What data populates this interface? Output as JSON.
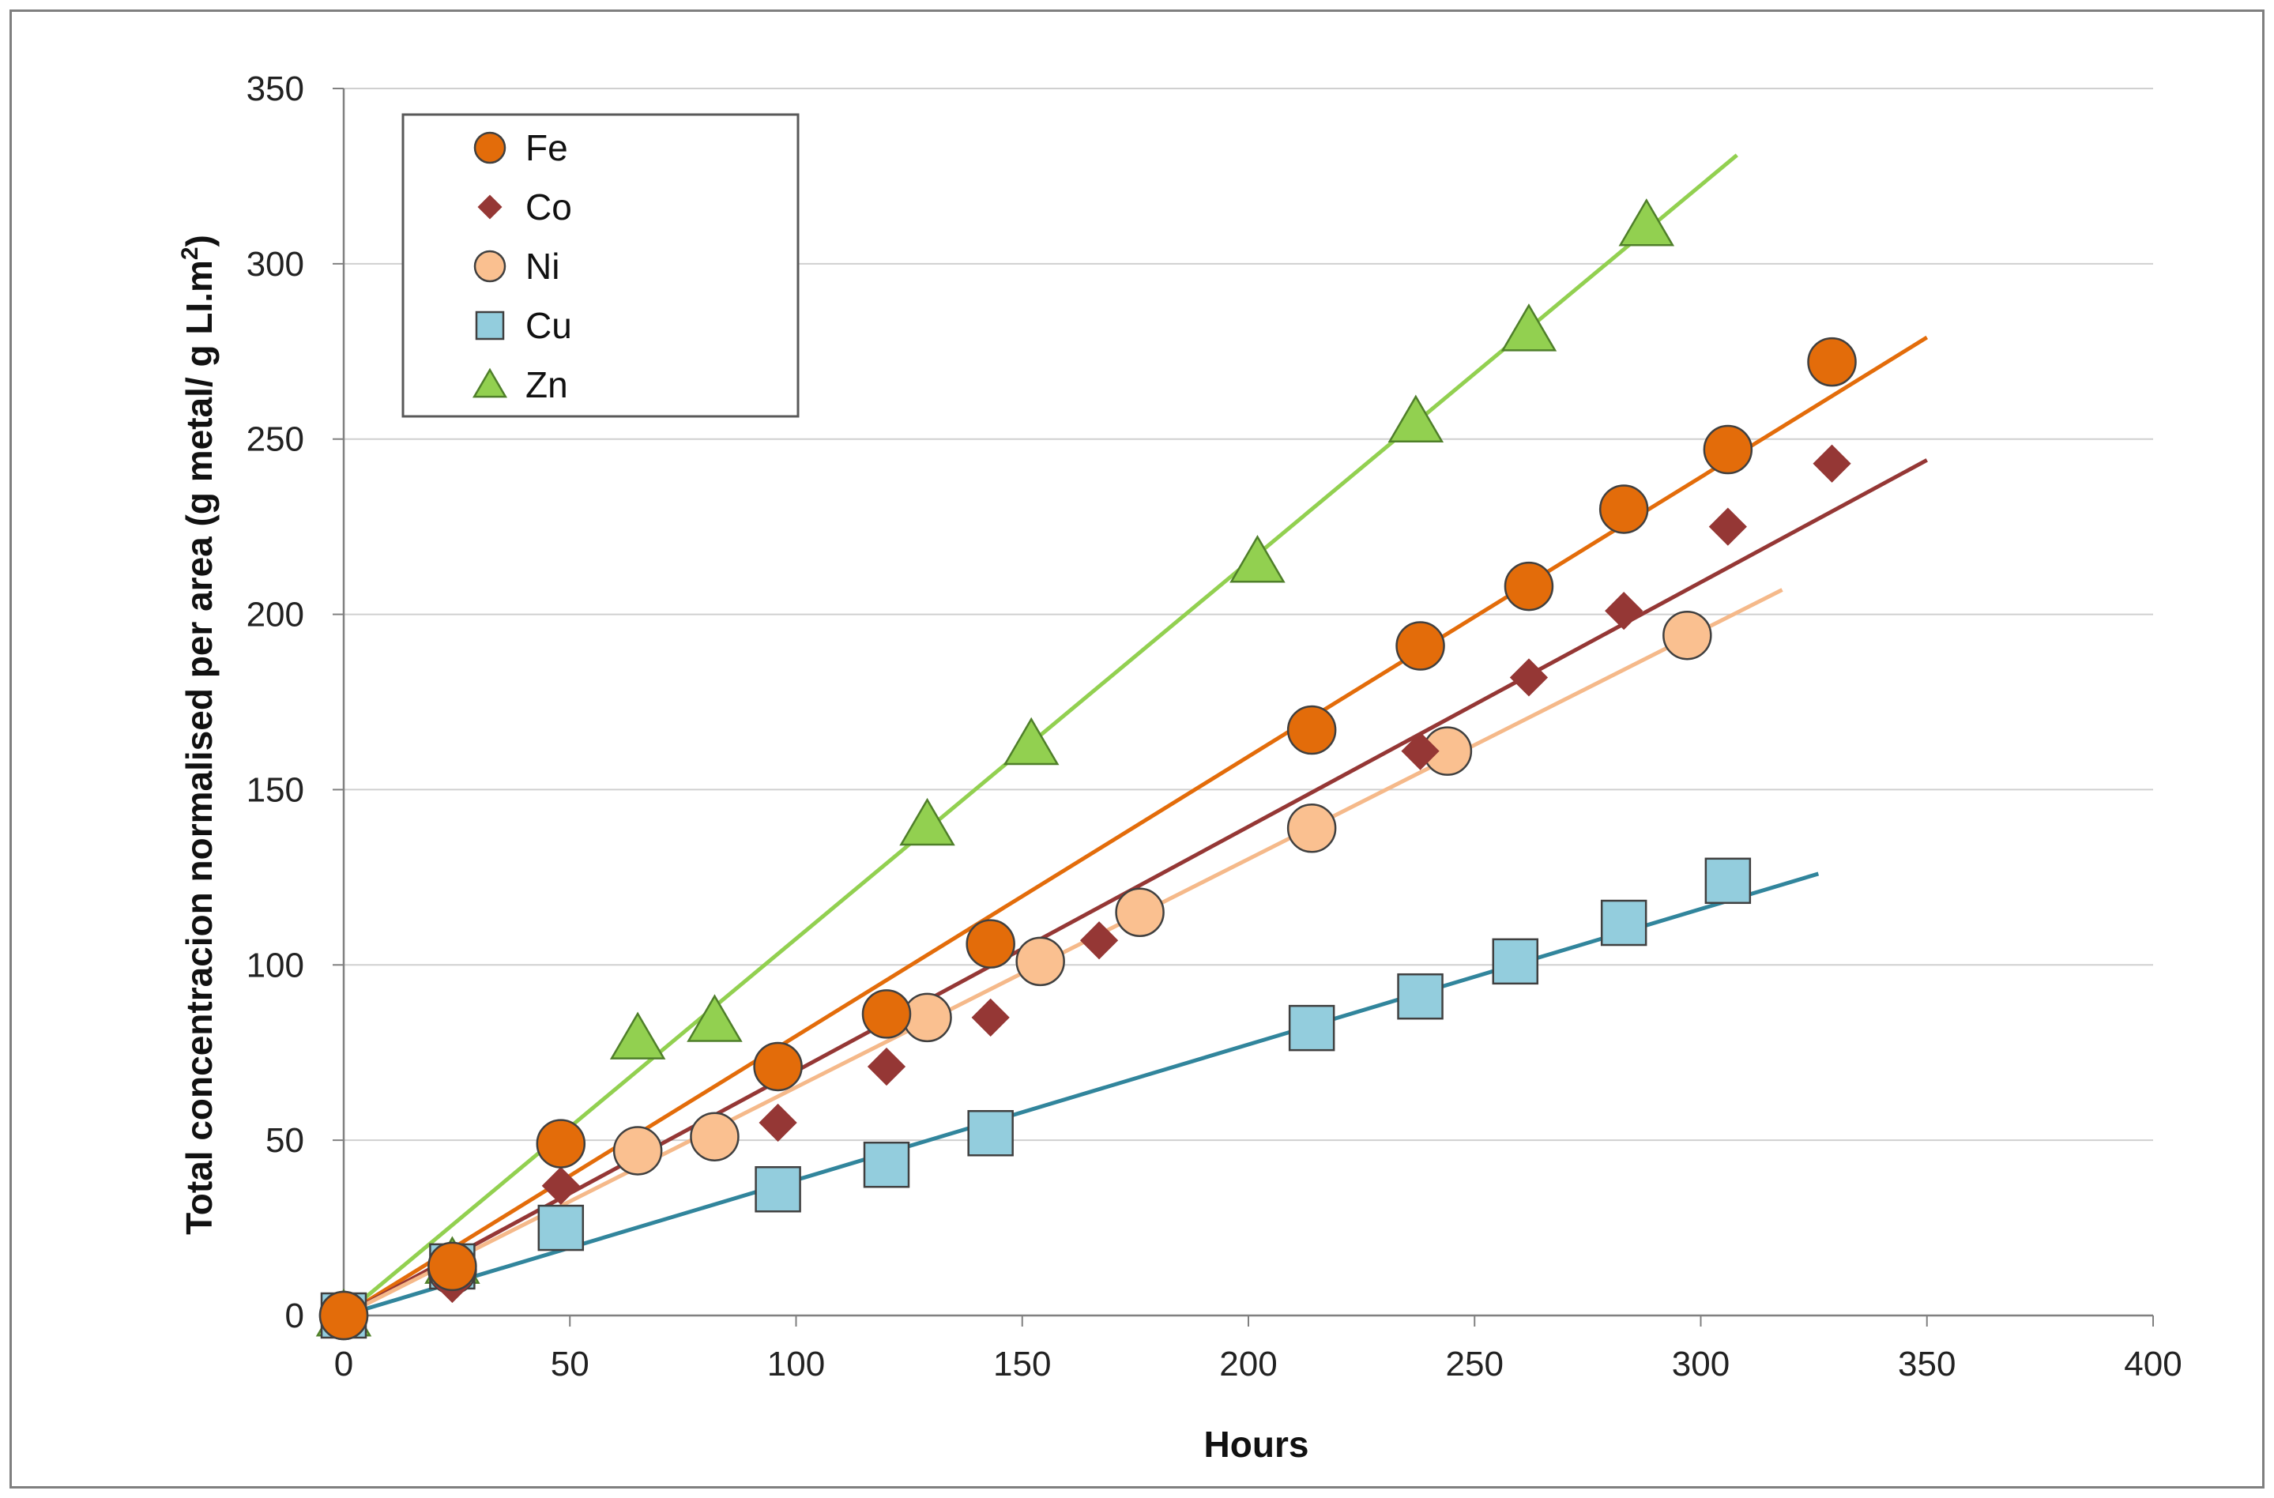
{
  "chart_data": {
    "type": "scatter",
    "title": "",
    "xlabel": "Hours",
    "ylabel_main": "Total concentracion normalised per area (g metal/ g LI.m",
    "ylabel_sup": "2",
    "ylabel_end": ")",
    "xlim": [
      0,
      400
    ],
    "ylim": [
      0,
      350
    ],
    "xticks": [
      0,
      50,
      100,
      150,
      200,
      250,
      300,
      350,
      400
    ],
    "yticks": [
      0,
      50,
      100,
      150,
      200,
      250,
      300,
      350
    ],
    "xtick_labels": [
      "0",
      "50",
      "100",
      "150",
      "200",
      "250",
      "300",
      "350",
      "400"
    ],
    "ytick_labels": [
      "0",
      "50",
      "100",
      "150",
      "200",
      "250",
      "300",
      "350"
    ],
    "grid": "horizontal",
    "legend_position": "top-left",
    "series": [
      {
        "name": "Fe",
        "marker": "circle",
        "color": "#E36C0A",
        "line_color": "#E36C0A",
        "x": [
          0,
          24,
          48,
          96,
          120,
          143,
          214,
          238,
          262,
          283,
          306,
          329
        ],
        "y": [
          0,
          14,
          49,
          71,
          86,
          106,
          167,
          191,
          208,
          230,
          247,
          272
        ],
        "trend": [
          [
            0,
            0
          ],
          [
            350,
            279
          ]
        ]
      },
      {
        "name": "Co",
        "marker": "diamond",
        "color": "#953735",
        "line_color": "#953735",
        "x": [
          0,
          24,
          48,
          96,
          120,
          143,
          167,
          238,
          262,
          283,
          306,
          329
        ],
        "y": [
          0,
          9,
          37,
          55,
          71,
          85,
          107,
          161,
          182,
          201,
          225,
          243
        ],
        "trend": [
          [
            0,
            0
          ],
          [
            350,
            244
          ]
        ]
      },
      {
        "name": "Ni",
        "marker": "circle",
        "color": "#FAC090",
        "line_color": "#F5B98A",
        "x": [
          0,
          24,
          65,
          82,
          129,
          154,
          176,
          214,
          244,
          297
        ],
        "y": [
          0,
          13,
          47,
          51,
          85,
          101,
          115,
          139,
          161,
          194
        ],
        "trend": [
          [
            0,
            0
          ],
          [
            318,
            207
          ]
        ]
      },
      {
        "name": "Cu",
        "marker": "square",
        "color": "#93CDDD",
        "line_color": "#31859C",
        "x": [
          0,
          24,
          48,
          96,
          120,
          143,
          214,
          238,
          259,
          283,
          306
        ],
        "y": [
          0,
          14,
          25,
          36,
          43,
          52,
          82,
          91,
          101,
          112,
          124
        ],
        "trend": [
          [
            0,
            0
          ],
          [
            326,
            126
          ]
        ]
      },
      {
        "name": "Zn",
        "marker": "triangle",
        "color": "#92D050",
        "line_color": "#92D050",
        "x": [
          0,
          24,
          65,
          82,
          129,
          152,
          202,
          237,
          262,
          288
        ],
        "y": [
          0,
          15,
          79,
          84,
          140,
          163,
          215,
          255,
          281,
          311
        ],
        "trend": [
          [
            0,
            0
          ],
          [
            308,
            331
          ]
        ]
      }
    ]
  }
}
